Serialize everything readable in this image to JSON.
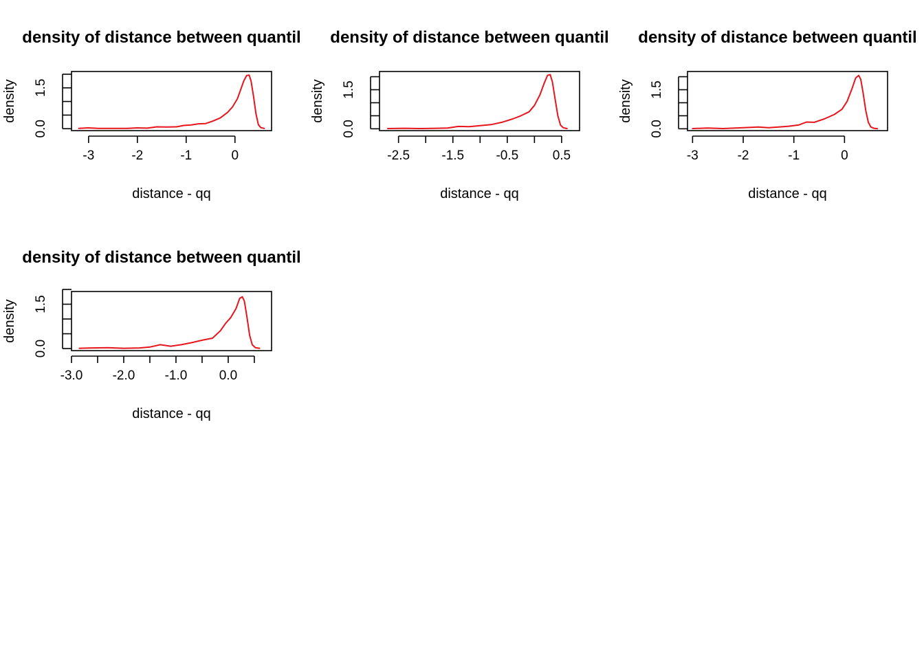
{
  "colors": {
    "line": "#e8141b",
    "axis": "#000000",
    "background": "#ffffff"
  },
  "chart_data": [
    {
      "type": "line",
      "title": "density of distance between quantil",
      "xlabel": "distance - qq",
      "ylabel": "density",
      "xticks": [
        -3,
        -2,
        -1,
        0
      ],
      "xtick_labels": [
        "-3",
        "-2",
        "-1",
        "0"
      ],
      "yticks": [
        0,
        0.5,
        1.0,
        1.5,
        2.0
      ],
      "ytick_labels": [
        "0.0",
        "",
        "",
        "1.5",
        ""
      ],
      "xlim": [
        -3.35,
        0.75
      ],
      "ylim": [
        -0.07,
        2.1
      ],
      "grid": false,
      "series": [
        {
          "x": [
            -3.2,
            -3.0,
            -2.8,
            -2.5,
            -2.2,
            -2.0,
            -1.8,
            -1.6,
            -1.4,
            -1.2,
            -1.05,
            -0.9,
            -0.75,
            -0.6,
            -0.45,
            -0.3,
            -0.15,
            -0.05,
            0.05,
            0.12,
            0.18,
            0.24,
            0.29,
            0.33,
            0.38,
            0.43,
            0.48,
            0.53,
            0.6
          ],
          "y": [
            0.01,
            0.03,
            0.01,
            0.01,
            0.01,
            0.03,
            0.02,
            0.07,
            0.06,
            0.07,
            0.12,
            0.14,
            0.18,
            0.19,
            0.28,
            0.4,
            0.6,
            0.8,
            1.1,
            1.45,
            1.75,
            1.95,
            1.97,
            1.75,
            1.2,
            0.55,
            0.15,
            0.04,
            0.01
          ]
        }
      ]
    },
    {
      "type": "line",
      "title": "density of distance between quantil",
      "xlabel": "distance - qq",
      "ylabel": "density",
      "xticks": [
        -2.5,
        -2.0,
        -1.5,
        -1.0,
        -0.5,
        0.0,
        0.5
      ],
      "xtick_labels": [
        "-2.5",
        "",
        "-1.5",
        "",
        "-0.5",
        "",
        "0.5"
      ],
      "yticks": [
        0,
        0.5,
        1.0,
        1.5,
        2.0
      ],
      "ytick_labels": [
        "0.0",
        "",
        "",
        "1.5",
        ""
      ],
      "xlim": [
        -2.85,
        0.83
      ],
      "ylim": [
        -0.07,
        2.2
      ],
      "grid": false,
      "series": [
        {
          "x": [
            -2.7,
            -2.4,
            -2.1,
            -1.8,
            -1.6,
            -1.4,
            -1.2,
            -1.0,
            -0.8,
            -0.6,
            -0.4,
            -0.25,
            -0.1,
            0.0,
            0.1,
            0.18,
            0.24,
            0.29,
            0.33,
            0.38,
            0.43,
            0.48,
            0.53,
            0.6
          ],
          "y": [
            0.01,
            0.02,
            0.01,
            0.02,
            0.03,
            0.09,
            0.08,
            0.12,
            0.16,
            0.25,
            0.38,
            0.5,
            0.65,
            0.9,
            1.3,
            1.75,
            2.05,
            2.08,
            1.8,
            1.15,
            0.5,
            0.14,
            0.04,
            0.01
          ]
        }
      ]
    },
    {
      "type": "line",
      "title": "density of distance between quantil",
      "xlabel": "distance - qq",
      "ylabel": "density",
      "xticks": [
        -3,
        -2,
        -1,
        0
      ],
      "xtick_labels": [
        "-3",
        "-2",
        "-1",
        "0"
      ],
      "yticks": [
        0,
        0.5,
        1.0,
        1.5,
        2.0
      ],
      "ytick_labels": [
        "0.0",
        "",
        "",
        "1.5",
        ""
      ],
      "xlim": [
        -3.1,
        0.85
      ],
      "ylim": [
        -0.07,
        2.2
      ],
      "grid": false,
      "series": [
        {
          "x": [
            -3.0,
            -2.7,
            -2.4,
            -2.0,
            -1.7,
            -1.5,
            -1.3,
            -1.1,
            -0.9,
            -0.75,
            -0.6,
            -0.4,
            -0.2,
            -0.05,
            0.05,
            0.15,
            0.22,
            0.28,
            0.32,
            0.37,
            0.42,
            0.47,
            0.52,
            0.58,
            0.65
          ],
          "y": [
            0.01,
            0.03,
            0.01,
            0.04,
            0.07,
            0.04,
            0.07,
            0.1,
            0.15,
            0.26,
            0.25,
            0.38,
            0.55,
            0.75,
            1.05,
            1.55,
            1.95,
            2.05,
            1.9,
            1.35,
            0.7,
            0.25,
            0.07,
            0.02,
            0.0
          ]
        }
      ]
    },
    {
      "type": "line",
      "title": "density of distance between quantil",
      "xlabel": "distance - qq",
      "ylabel": "density",
      "xticks": [
        -3.0,
        -2.5,
        -2.0,
        -1.5,
        -1.0,
        -0.5,
        0.0,
        0.5
      ],
      "xtick_labels": [
        "-3.0",
        "",
        "-2.0",
        "",
        "-1.0",
        "",
        "0.0",
        ""
      ],
      "yticks": [
        0,
        0.5,
        1.0,
        1.5,
        2.0
      ],
      "ytick_labels": [
        "0.0",
        "",
        "",
        "1.5",
        ""
      ],
      "xlim": [
        -3.0,
        0.83
      ],
      "ylim": [
        -0.07,
        1.93
      ],
      "grid": false,
      "series": [
        {
          "x": [
            -2.85,
            -2.6,
            -2.3,
            -2.0,
            -1.7,
            -1.5,
            -1.3,
            -1.1,
            -0.9,
            -0.7,
            -0.5,
            -0.3,
            -0.15,
            -0.05,
            0.05,
            0.15,
            0.22,
            0.27,
            0.31,
            0.36,
            0.41,
            0.46,
            0.52,
            0.6
          ],
          "y": [
            0.01,
            0.02,
            0.03,
            0.01,
            0.02,
            0.05,
            0.13,
            0.08,
            0.13,
            0.2,
            0.28,
            0.35,
            0.6,
            0.85,
            1.05,
            1.35,
            1.7,
            1.75,
            1.6,
            1.05,
            0.45,
            0.13,
            0.03,
            0.01
          ]
        }
      ]
    }
  ]
}
